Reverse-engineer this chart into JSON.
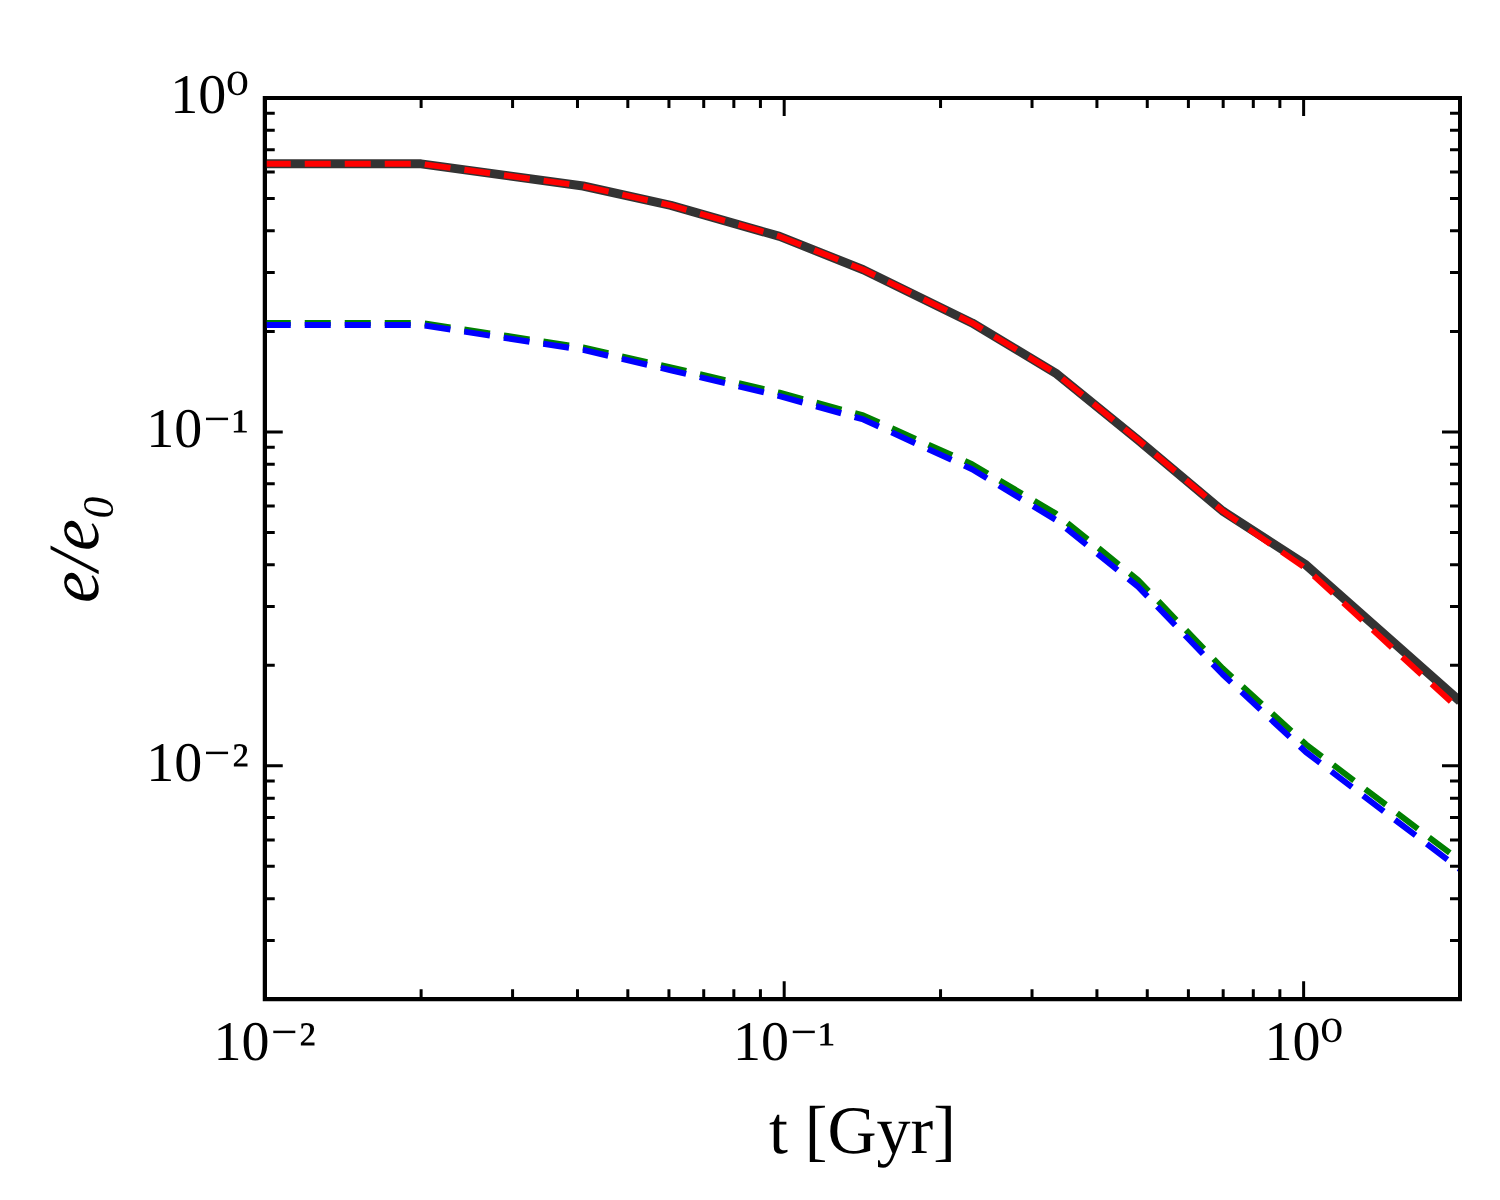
{
  "chart_data": {
    "type": "line",
    "xlabel": "t [Gyr]",
    "ylabel": "e/e₀",
    "log": "xy",
    "grid": false,
    "legend": false,
    "marker": "none",
    "x": [
      0.01,
      0.02,
      0.041,
      0.0605,
      0.098,
      0.142,
      0.23,
      0.333,
      0.48,
      0.698,
      1.01,
      2
    ],
    "xlim": [
      0.01,
      2
    ],
    "ylim": [
      0.002,
      1
    ],
    "xticks": [
      {
        "value": 0.01,
        "label": "10⁻²"
      },
      {
        "value": 0.02,
        "label": null
      },
      {
        "value": 0.03,
        "label": null
      },
      {
        "value": 0.04,
        "label": null
      },
      {
        "value": 0.05,
        "label": null
      },
      {
        "value": 0.06,
        "label": null
      },
      {
        "value": 0.07,
        "label": null
      },
      {
        "value": 0.08,
        "label": null
      },
      {
        "value": 0.09,
        "label": null
      },
      {
        "value": 0.1,
        "label": "10⁻¹"
      },
      {
        "value": 0.2,
        "label": null
      },
      {
        "value": 0.3,
        "label": null
      },
      {
        "value": 0.4,
        "label": null
      },
      {
        "value": 0.5,
        "label": null
      },
      {
        "value": 0.6,
        "label": null
      },
      {
        "value": 0.7,
        "label": null
      },
      {
        "value": 0.8,
        "label": null
      },
      {
        "value": 0.9,
        "label": null
      },
      {
        "value": 1,
        "label": "10⁰"
      }
    ],
    "yticks": [
      {
        "value": 0.003,
        "label": null
      },
      {
        "value": 0.004,
        "label": null
      },
      {
        "value": 0.005,
        "label": null
      },
      {
        "value": 0.006,
        "label": null
      },
      {
        "value": 0.007,
        "label": null
      },
      {
        "value": 0.008,
        "label": null
      },
      {
        "value": 0.009,
        "label": null
      },
      {
        "value": 0.01,
        "label": "10⁻²"
      },
      {
        "value": 0.02,
        "label": null
      },
      {
        "value": 0.03,
        "label": null
      },
      {
        "value": 0.04,
        "label": null
      },
      {
        "value": 0.05,
        "label": null
      },
      {
        "value": 0.06,
        "label": null
      },
      {
        "value": 0.07,
        "label": null
      },
      {
        "value": 0.08,
        "label": null
      },
      {
        "value": 0.09,
        "label": null
      },
      {
        "value": 0.1,
        "label": "10⁻¹"
      },
      {
        "value": 0.2,
        "label": null
      },
      {
        "value": 0.3,
        "label": null
      },
      {
        "value": 0.4,
        "label": null
      },
      {
        "value": 0.5,
        "label": null
      },
      {
        "value": 0.6,
        "label": null
      },
      {
        "value": 0.7,
        "label": null
      },
      {
        "value": 0.8,
        "label": null
      },
      {
        "value": 0.9,
        "label": null
      },
      {
        "value": 1,
        "label": "10⁰"
      }
    ],
    "series": [
      {
        "color": "#333333",
        "line_style": "solid",
        "values": [
          0.635,
          0.635,
          0.545,
          0.477,
          0.385,
          0.306,
          0.212,
          0.15,
          0.0946,
          0.058,
          0.04,
          0.0156
        ]
      },
      {
        "color": "#ff0000",
        "line_style": "dashed",
        "values": [
          0.635,
          0.635,
          0.545,
          0.477,
          0.385,
          0.306,
          0.212,
          0.15,
          0.0946,
          0.058,
          0.039,
          0.0147
        ]
      },
      {
        "color": "#008000",
        "line_style": "dashed",
        "values": [
          0.212,
          0.212,
          0.179,
          0.156,
          0.131,
          0.112,
          0.08,
          0.057,
          0.036,
          0.0196,
          0.0116,
          0.0052
        ]
      },
      {
        "color": "#0000ff",
        "line_style": "dashed",
        "values": [
          0.209,
          0.209,
          0.176,
          0.153,
          0.128,
          0.109,
          0.0773,
          0.0546,
          0.0344,
          0.0188,
          0.011,
          0.0049
        ]
      }
    ]
  }
}
